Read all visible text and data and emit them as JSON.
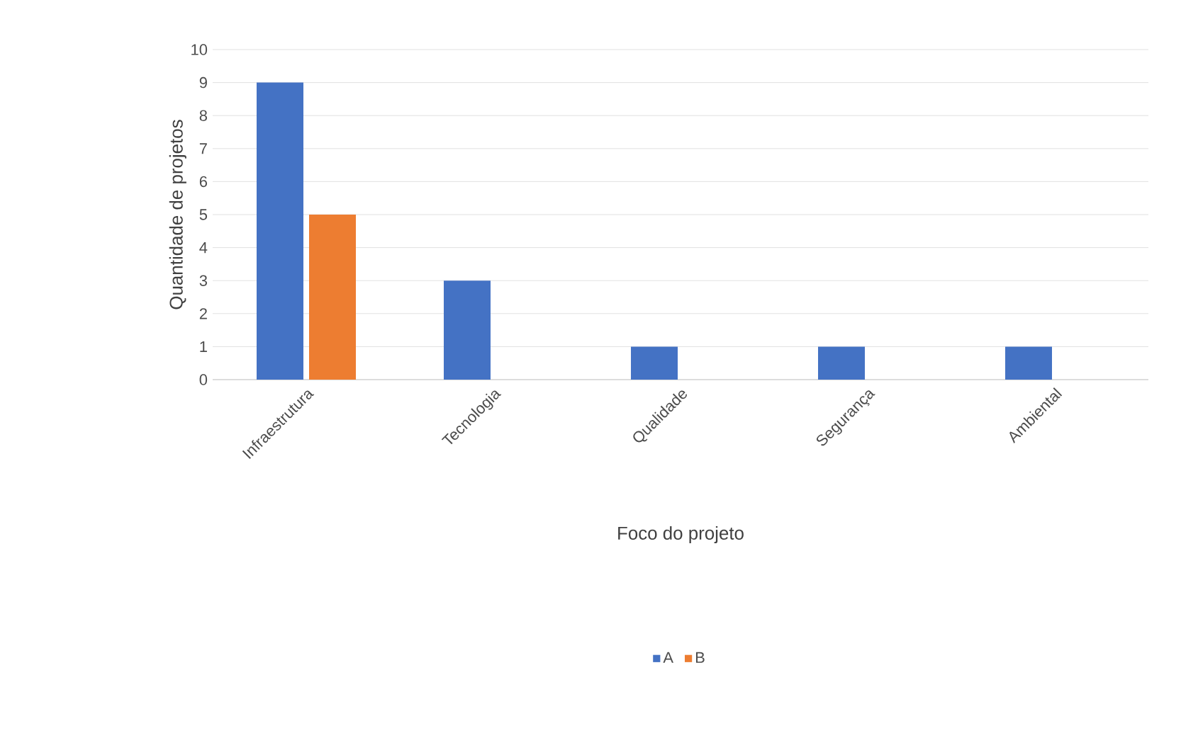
{
  "chart_data": {
    "type": "bar",
    "xlabel": "Foco do projeto",
    "ylabel": "Quantidade de projetos",
    "categories": [
      "Infraestrutura",
      "Tecnologia",
      "Qualidade",
      "Segurança",
      "Ambiental"
    ],
    "series": [
      {
        "name": "A",
        "color": "#4472c4",
        "values": [
          9,
          3,
          1,
          1,
          1
        ]
      },
      {
        "name": "B",
        "color": "#ed7d31",
        "values": [
          5,
          null,
          null,
          null,
          null
        ]
      }
    ],
    "ylim": [
      0,
      10
    ],
    "yticks": [
      0,
      1,
      2,
      3,
      4,
      5,
      6,
      7,
      8,
      9,
      10
    ],
    "grid": "y",
    "legend": "bottom"
  }
}
